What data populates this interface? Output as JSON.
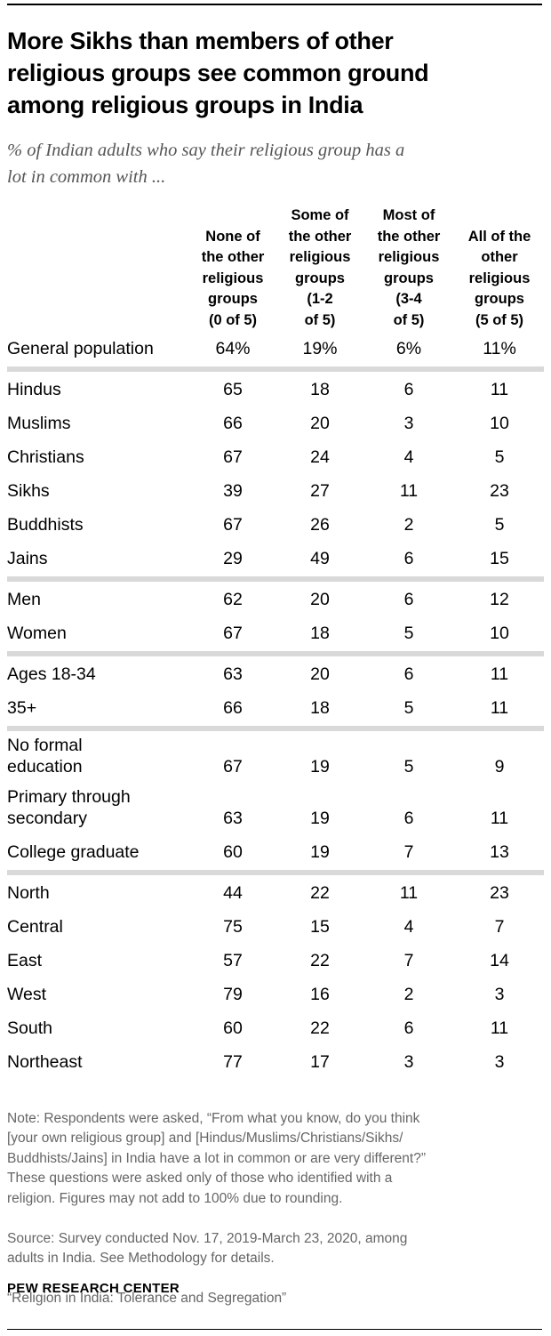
{
  "header": {
    "title": "More Sikhs than members of other\nreligious groups see common ground\namong religious groups in India",
    "subtitle": "% of Indian adults who say their religious group has a\nlot in common with ..."
  },
  "table": {
    "columns": [
      "None of\nthe other\nreligious\ngroups\n(0 of 5)",
      "Some of\nthe other\nreligious\ngroups\n(1-2\nof 5)",
      "Most of\nthe other\nreligious\ngroups\n(3-4\nof 5)",
      "All of the\nother\nreligious\ngroups\n(5 of 5)"
    ],
    "groups": [
      [
        [
          "General population",
          "64%",
          "19%",
          "6%",
          "11%"
        ]
      ],
      [
        [
          "Hindus",
          65,
          18,
          6,
          11
        ],
        [
          "Muslims",
          66,
          20,
          3,
          10
        ],
        [
          "Christians",
          67,
          24,
          4,
          5
        ],
        [
          "Sikhs",
          39,
          27,
          11,
          23
        ],
        [
          "Buddhists",
          67,
          26,
          2,
          5
        ],
        [
          "Jains",
          29,
          49,
          6,
          15
        ]
      ],
      [
        [
          "Men",
          62,
          20,
          6,
          12
        ],
        [
          "Women",
          67,
          18,
          5,
          10
        ]
      ],
      [
        [
          "Ages 18-34",
          63,
          20,
          6,
          11
        ],
        [
          "35+",
          66,
          18,
          5,
          11
        ]
      ],
      [
        [
          "No formal\neducation",
          67,
          19,
          5,
          9
        ],
        [
          "Primary through\nsecondary",
          63,
          19,
          6,
          11
        ],
        [
          "College graduate",
          60,
          19,
          7,
          13
        ]
      ],
      [
        [
          "North",
          44,
          22,
          11,
          23
        ],
        [
          "Central",
          75,
          15,
          4,
          7
        ],
        [
          "East",
          57,
          22,
          7,
          14
        ],
        [
          "West",
          79,
          16,
          2,
          3
        ],
        [
          "South",
          60,
          22,
          6,
          11
        ],
        [
          "Northeast",
          77,
          17,
          3,
          3
        ]
      ]
    ]
  },
  "footer": {
    "note": "Note: Respondents were asked, “From what you know, do you think\n[your own religious group] and [Hindus/Muslims/Christians/Sikhs/\nBuddhists/Jains] in India have a lot in common or are very different?”\nThese questions were asked only of those who identified with a\nreligion. Figures may not add to 100% due to rounding.",
    "source": "Source: Survey conducted Nov. 17, 2019-March 23, 2020, among\nadults in India. See Methodology for details.",
    "report": "“Religion in India: Tolerance and Segregation”",
    "brand": "PEW RESEARCH CENTER"
  }
}
